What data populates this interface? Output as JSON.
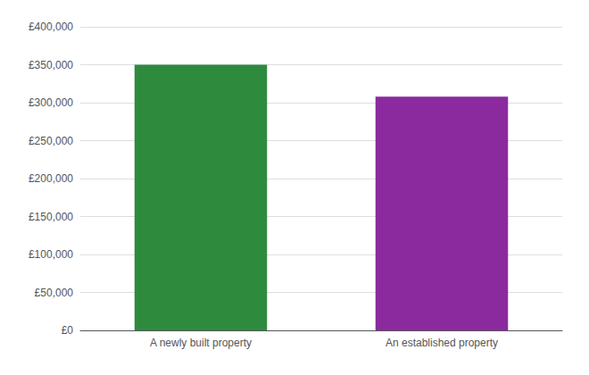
{
  "chart_data": {
    "type": "bar",
    "categories": [
      "A newly built property",
      "An established property"
    ],
    "values": [
      350000,
      308000
    ],
    "colors": [
      "#2e8b3e",
      "#8b2a9e"
    ],
    "ylim": [
      0,
      400000
    ],
    "yticks": [
      {
        "value": 0,
        "label": "£0"
      },
      {
        "value": 50000,
        "label": "£50,000"
      },
      {
        "value": 100000,
        "label": "£100,000"
      },
      {
        "value": 150000,
        "label": "£150,000"
      },
      {
        "value": 200000,
        "label": "£200,000"
      },
      {
        "value": 250000,
        "label": "£250,000"
      },
      {
        "value": 300000,
        "label": "£300,000"
      },
      {
        "value": 350000,
        "label": "£350,000"
      },
      {
        "value": 400000,
        "label": "£400,000"
      }
    ],
    "grid": true
  }
}
